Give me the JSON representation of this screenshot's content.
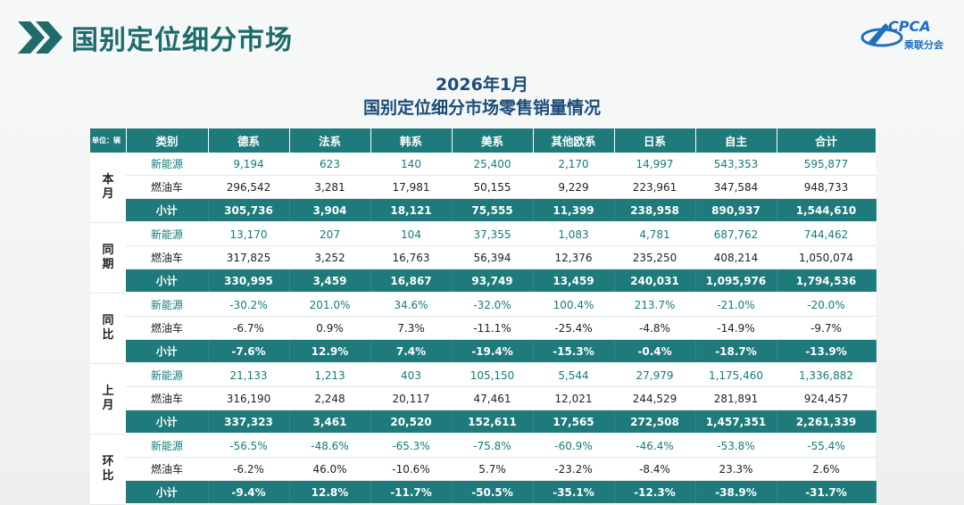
{
  "page_title": "国别定位细分市场",
  "logo": {
    "text": "CPCA",
    "subtitle": "乘联分会"
  },
  "report": {
    "heading1": "2026年1月",
    "heading2": "国别定位细分市场零售销量情况"
  },
  "table": {
    "unit_label": "单位：辆",
    "category_header": "类别",
    "columns": [
      "德系",
      "法系",
      "韩系",
      "美系",
      "其他欧系",
      "日系",
      "自主",
      "合计"
    ],
    "groups": [
      {
        "name": "本月",
        "rows": [
          {
            "label": "新能源",
            "type": "ne",
            "values": [
              "9,194",
              "623",
              "140",
              "25,400",
              "2,170",
              "14,997",
              "543,353",
              "595,877"
            ]
          },
          {
            "label": "燃油车",
            "type": "fuel",
            "values": [
              "296,542",
              "3,281",
              "17,981",
              "50,155",
              "9,229",
              "223,961",
              "347,584",
              "948,733"
            ]
          },
          {
            "label": "小计",
            "type": "sub",
            "values": [
              "305,736",
              "3,904",
              "18,121",
              "75,555",
              "11,399",
              "238,958",
              "890,937",
              "1,544,610"
            ]
          }
        ]
      },
      {
        "name": "同期",
        "rows": [
          {
            "label": "新能源",
            "type": "ne",
            "values": [
              "13,170",
              "207",
              "104",
              "37,355",
              "1,083",
              "4,781",
              "687,762",
              "744,462"
            ]
          },
          {
            "label": "燃油车",
            "type": "fuel",
            "values": [
              "317,825",
              "3,252",
              "16,763",
              "56,394",
              "12,376",
              "235,250",
              "408,214",
              "1,050,074"
            ]
          },
          {
            "label": "小计",
            "type": "sub",
            "values": [
              "330,995",
              "3,459",
              "16,867",
              "93,749",
              "13,459",
              "240,031",
              "1,095,976",
              "1,794,536"
            ]
          }
        ]
      },
      {
        "name": "同比",
        "rows": [
          {
            "label": "新能源",
            "type": "ne",
            "values": [
              "-30.2%",
              "201.0%",
              "34.6%",
              "-32.0%",
              "100.4%",
              "213.7%",
              "-21.0%",
              "-20.0%"
            ]
          },
          {
            "label": "燃油车",
            "type": "fuel",
            "values": [
              "-6.7%",
              "0.9%",
              "7.3%",
              "-11.1%",
              "-25.4%",
              "-4.8%",
              "-14.9%",
              "-9.7%"
            ]
          },
          {
            "label": "小计",
            "type": "sub",
            "values": [
              "-7.6%",
              "12.9%",
              "7.4%",
              "-19.4%",
              "-15.3%",
              "-0.4%",
              "-18.7%",
              "-13.9%"
            ]
          }
        ]
      },
      {
        "name": "上月",
        "rows": [
          {
            "label": "新能源",
            "type": "ne",
            "values": [
              "21,133",
              "1,213",
              "403",
              "105,150",
              "5,544",
              "27,979",
              "1,175,460",
              "1,336,882"
            ]
          },
          {
            "label": "燃油车",
            "type": "fuel",
            "values": [
              "316,190",
              "2,248",
              "20,117",
              "47,461",
              "12,021",
              "244,529",
              "281,891",
              "924,457"
            ]
          },
          {
            "label": "小计",
            "type": "sub",
            "values": [
              "337,323",
              "3,461",
              "20,520",
              "152,611",
              "17,565",
              "272,508",
              "1,457,351",
              "2,261,339"
            ]
          }
        ]
      },
      {
        "name": "环比",
        "rows": [
          {
            "label": "新能源",
            "type": "ne",
            "values": [
              "-56.5%",
              "-48.6%",
              "-65.3%",
              "-75.8%",
              "-60.9%",
              "-46.4%",
              "-53.8%",
              "-55.4%"
            ]
          },
          {
            "label": "燃油车",
            "type": "fuel",
            "values": [
              "-6.2%",
              "46.0%",
              "-10.6%",
              "5.7%",
              "-23.2%",
              "-8.4%",
              "23.3%",
              "2.6%"
            ]
          },
          {
            "label": "小计",
            "type": "sub",
            "values": [
              "-9.4%",
              "12.8%",
              "-11.7%",
              "-50.5%",
              "-35.1%",
              "-12.3%",
              "-38.9%",
              "-31.7%"
            ]
          }
        ]
      }
    ]
  }
}
